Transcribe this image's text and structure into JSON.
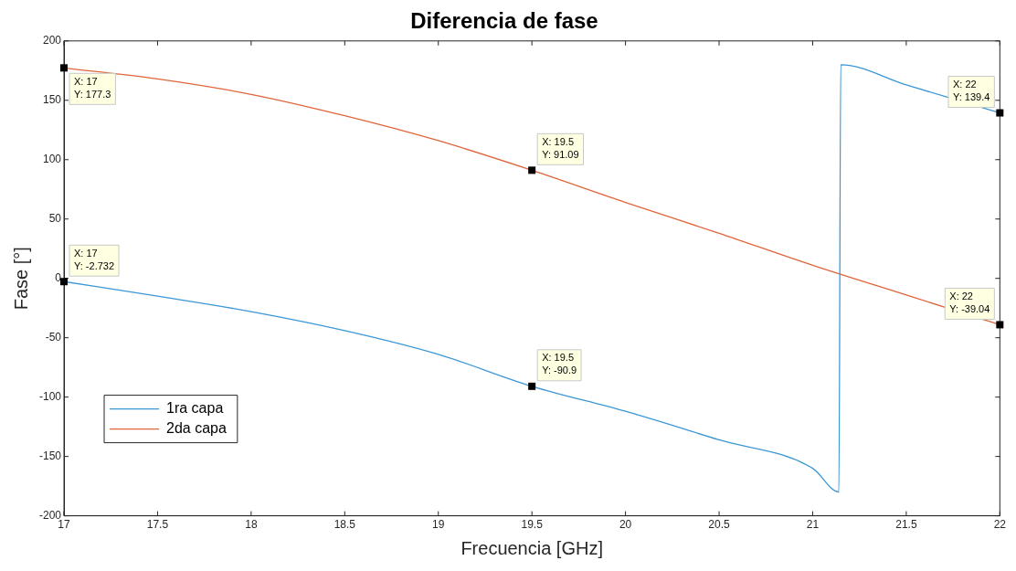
{
  "chart_data": {
    "type": "line",
    "title": "Diferencia de fase",
    "xlabel": "Frecuencia [GHz]",
    "ylabel": "Fase [°]",
    "xlim": [
      17,
      22
    ],
    "xticks": [
      17,
      17.5,
      18,
      18.5,
      19,
      19.5,
      20,
      20.5,
      21,
      21.5,
      22
    ],
    "ylim": [
      -200,
      200
    ],
    "yticks": [
      -200,
      -150,
      -100,
      -50,
      0,
      50,
      100,
      150,
      200
    ],
    "grid": false,
    "legend": "bottom left",
    "marker": "none",
    "line_style": "solid",
    "series": [
      {
        "name": "1ra capa",
        "color": "#3c97d6",
        "x": [
          17,
          17.5,
          18,
          18.5,
          19,
          19.5,
          20,
          20.5,
          21,
          21.14,
          21.15,
          21.5,
          22
        ],
        "values": [
          -2.732,
          -15,
          -28,
          -44,
          -64,
          -90.9,
          -112,
          -136,
          -160,
          -180,
          180,
          163,
          139.4
        ]
      },
      {
        "name": "2da capa",
        "color": "#e0653a",
        "x": [
          17,
          17.5,
          18,
          18.5,
          19,
          19.5,
          20,
          20.5,
          21,
          21.5,
          22
        ],
        "values": [
          177.3,
          168,
          155,
          137,
          116,
          91.09,
          64,
          38,
          11,
          -14,
          -39.04
        ]
      }
    ],
    "annotations": [
      {
        "text": "X: 17\nY: 177.3",
        "x": 17,
        "y": 177.3
      },
      {
        "text": "X: 19.5\nY: 91.09",
        "x": 19.5,
        "y": 91.09
      },
      {
        "text": "X: 22\nY: 139.4",
        "x": 22,
        "y": 139.4
      },
      {
        "text": "X: 17\nY: -2.732",
        "x": 17,
        "y": -2.732
      },
      {
        "text": "X: 19.5\nY: -90.9",
        "x": 19.5,
        "y": -90.9
      },
      {
        "text": "X: 22\nY: -39.04",
        "x": 22,
        "y": -39.04
      }
    ]
  }
}
